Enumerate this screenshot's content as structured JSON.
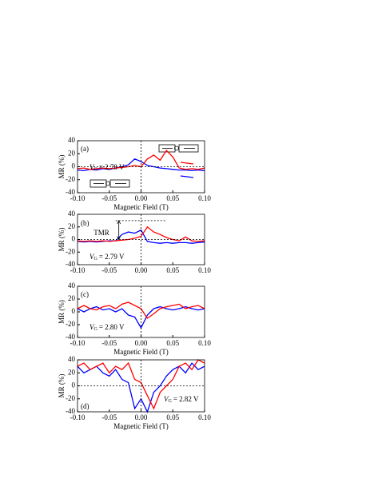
{
  "chart_data": [
    {
      "type": "line",
      "panel_label": "(a)",
      "gate_symbol": "V",
      "gate_subscript": "G",
      "gate_value": "= 2.78 V",
      "x_label": "Magnetic Field (T)",
      "y_label": "MR (%)",
      "x": [
        -0.1,
        -0.09,
        -0.08,
        -0.07,
        -0.06,
        -0.05,
        -0.04,
        -0.03,
        -0.02,
        -0.01,
        0,
        0.01,
        0.02,
        0.03,
        0.04,
        0.05,
        0.06,
        0.07,
        0.08,
        0.09,
        0.1
      ],
      "series": [
        {
          "color": "#0000ff",
          "values": [
            -5,
            -6,
            -4,
            -5,
            -3,
            -4,
            -2,
            0,
            3,
            12,
            8,
            2,
            0,
            -2,
            -3,
            -4,
            -5,
            -5,
            -6,
            -5,
            -6
          ]
        },
        {
          "color": "#ff0000",
          "values": [
            -3,
            -2,
            -4,
            -3,
            -2,
            -3,
            -2,
            -1,
            0,
            2,
            0,
            12,
            18,
            10,
            25,
            15,
            -2,
            -4,
            -3,
            -4,
            -2
          ]
        }
      ],
      "xlim": [
        -0.1,
        0.1
      ],
      "xticks": [
        {
          "value": -0.1,
          "label": "-0.10"
        },
        {
          "value": -0.05,
          "label": "-0.05"
        },
        {
          "value": 0,
          "label": "0.00"
        },
        {
          "value": 0.05,
          "label": "0.05"
        },
        {
          "value": 0.1,
          "label": "0.10"
        }
      ],
      "ylim": [
        -40,
        40
      ],
      "yticks": [
        40,
        20,
        0,
        -20,
        -40
      ],
      "hlines": [
        0
      ],
      "vlines": [
        0
      ]
    },
    {
      "type": "line",
      "panel_label": "(b)",
      "gate_symbol": "V",
      "gate_subscript": "G",
      "gate_value": "=  2.79 V",
      "y_label": "MR  (%)",
      "annotation": "TMR",
      "tmr_level": 30,
      "tmr_span": [
        -0.04,
        0.04
      ],
      "tmr_arrow_x": -0.035,
      "x": [
        -0.1,
        -0.09,
        -0.08,
        -0.07,
        -0.06,
        -0.05,
        -0.04,
        -0.03,
        -0.02,
        -0.01,
        0,
        0.01,
        0.02,
        0.03,
        0.04,
        0.05,
        0.06,
        0.07,
        0.08,
        0.09,
        0.1
      ],
      "series": [
        {
          "color": "#0000ff",
          "values": [
            -3,
            -4,
            -3,
            -4,
            -3,
            -2,
            -2,
            8,
            12,
            10,
            15,
            -3,
            -5,
            -6,
            -5,
            -6,
            -5,
            -5,
            -6,
            -5,
            -4
          ]
        },
        {
          "color": "#ff0000",
          "values": [
            -2,
            -3,
            -2,
            -3,
            -2,
            -3,
            -2,
            -1,
            0,
            2,
            5,
            20,
            12,
            8,
            3,
            0,
            -2,
            4,
            -2,
            -3,
            -2
          ]
        }
      ],
      "xlim": [
        -0.1,
        0.1
      ],
      "xticks": [
        {
          "value": -0.1,
          "label": "-0.10"
        },
        {
          "value": -0.05,
          "label": "-0.05"
        },
        {
          "value": 0,
          "label": "0.00"
        },
        {
          "value": 0.05,
          "label": "0.05"
        },
        {
          "value": 0.1,
          "label": "0.10"
        }
      ],
      "ylim": [
        -40,
        40
      ],
      "yticks": [
        40,
        20,
        0,
        -20,
        -40
      ],
      "hlines": [
        0
      ],
      "vlines": [
        0
      ]
    },
    {
      "type": "line",
      "panel_label": "(c)",
      "gate_symbol": "V",
      "gate_subscript": "G",
      "gate_value": "= 2.80 V",
      "x_label": "Magnetic Field (T)",
      "y_label": "MR  (%)",
      "x": [
        -0.1,
        -0.09,
        -0.08,
        -0.07,
        -0.06,
        -0.05,
        -0.04,
        -0.03,
        -0.02,
        -0.01,
        0,
        0.01,
        0.02,
        0.03,
        0.04,
        0.05,
        0.06,
        0.07,
        0.08,
        0.09,
        0.1
      ],
      "series": [
        {
          "color": "#0000ff",
          "values": [
            5,
            0,
            5,
            8,
            3,
            5,
            0,
            5,
            -5,
            -8,
            -25,
            -5,
            5,
            8,
            5,
            3,
            5,
            8,
            5,
            3,
            5
          ]
        },
        {
          "color": "#ff0000",
          "values": [
            5,
            10,
            5,
            3,
            8,
            10,
            5,
            12,
            15,
            10,
            5,
            -10,
            -3,
            5,
            8,
            10,
            12,
            5,
            8,
            10,
            5
          ]
        }
      ],
      "xlim": [
        -0.1,
        0.1
      ],
      "xticks": [
        {
          "value": -0.1,
          "label": "-0.10"
        },
        {
          "value": -0.05,
          "label": "-0.05"
        },
        {
          "value": 0,
          "label": "0.00"
        },
        {
          "value": 0.05,
          "label": "0.05"
        },
        {
          "value": 0.1,
          "label": "0.10"
        }
      ],
      "ylim": [
        -40,
        40
      ],
      "yticks": [
        40,
        20,
        0,
        -20,
        -40
      ],
      "hlines": [],
      "vlines": [
        0
      ]
    },
    {
      "type": "line",
      "panel_label": "(d)",
      "gate_symbol": "V",
      "gate_subscript": "G",
      "gate_value": "= 2.82 V",
      "x_label": "Magnetic Field (T)",
      "y_label": "MR  (%)",
      "x": [
        -0.1,
        -0.09,
        -0.08,
        -0.07,
        -0.06,
        -0.05,
        -0.04,
        -0.03,
        -0.02,
        -0.01,
        0,
        0.01,
        0.02,
        0.03,
        0.04,
        0.05,
        0.06,
        0.07,
        0.08,
        0.09,
        0.1
      ],
      "series": [
        {
          "color": "#0000ff",
          "values": [
            30,
            20,
            25,
            30,
            20,
            15,
            25,
            10,
            5,
            -35,
            -20,
            -40,
            -10,
            0,
            15,
            25,
            30,
            20,
            35,
            25,
            30
          ]
        },
        {
          "color": "#ff0000",
          "values": [
            30,
            35,
            25,
            30,
            35,
            20,
            30,
            25,
            35,
            10,
            5,
            -15,
            -35,
            -10,
            0,
            10,
            30,
            35,
            25,
            40,
            35
          ]
        }
      ],
      "xlim": [
        -0.1,
        0.1
      ],
      "xticks": [
        {
          "value": -0.1,
          "label": "-0.10"
        },
        {
          "value": -0.05,
          "label": "-0.05"
        },
        {
          "value": 0,
          "label": "0.00"
        },
        {
          "value": 0.05,
          "label": "0.05"
        },
        {
          "value": 0.1,
          "label": "0.10"
        }
      ],
      "ylim": [
        -40,
        40
      ],
      "yticks": [
        40,
        20,
        0,
        -20,
        -40
      ],
      "hlines": [
        0
      ],
      "vlines": [
        0
      ]
    }
  ]
}
